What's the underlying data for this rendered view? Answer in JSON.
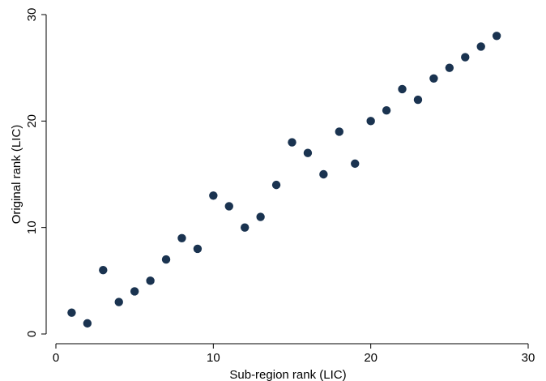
{
  "chart_data": {
    "type": "scatter",
    "xlabel": "Sub-region rank (LIC)",
    "ylabel": "Original rank (LIC)",
    "xlim": [
      0,
      30
    ],
    "ylim": [
      0,
      30
    ],
    "xticks": [
      0,
      10,
      20,
      30
    ],
    "yticks": [
      0,
      10,
      20,
      30
    ],
    "grid": false,
    "marker_color": "#1a3350",
    "series": [
      {
        "points": [
          {
            "x": 1,
            "y": 2
          },
          {
            "x": 2,
            "y": 1
          },
          {
            "x": 3,
            "y": 6
          },
          {
            "x": 4,
            "y": 3
          },
          {
            "x": 5,
            "y": 4
          },
          {
            "x": 6,
            "y": 5
          },
          {
            "x": 7,
            "y": 7
          },
          {
            "x": 8,
            "y": 9
          },
          {
            "x": 9,
            "y": 8
          },
          {
            "x": 10,
            "y": 13
          },
          {
            "x": 11,
            "y": 12
          },
          {
            "x": 12,
            "y": 10
          },
          {
            "x": 13,
            "y": 11
          },
          {
            "x": 14,
            "y": 14
          },
          {
            "x": 15,
            "y": 18
          },
          {
            "x": 16,
            "y": 17
          },
          {
            "x": 17,
            "y": 15
          },
          {
            "x": 18,
            "y": 19
          },
          {
            "x": 19,
            "y": 16
          },
          {
            "x": 20,
            "y": 20
          },
          {
            "x": 21,
            "y": 21
          },
          {
            "x": 22,
            "y": 23
          },
          {
            "x": 23,
            "y": 22
          },
          {
            "x": 24,
            "y": 24
          },
          {
            "x": 25,
            "y": 25
          },
          {
            "x": 26,
            "y": 26
          },
          {
            "x": 27,
            "y": 27
          },
          {
            "x": 28,
            "y": 28
          }
        ]
      }
    ]
  }
}
